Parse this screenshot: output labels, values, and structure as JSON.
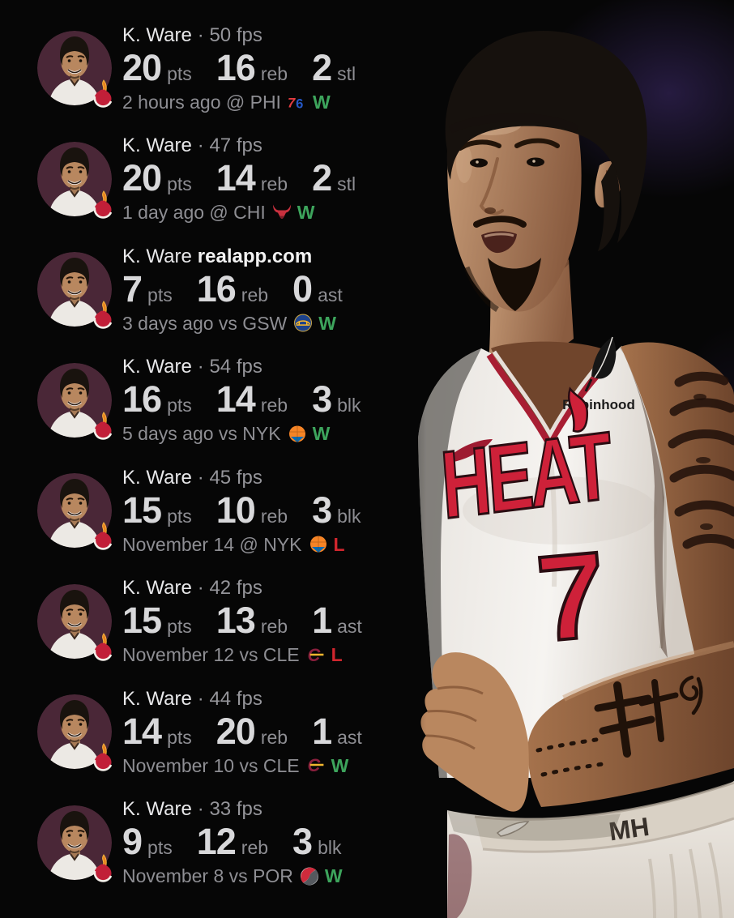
{
  "colors": {
    "background": "#060606",
    "heat_red": "#ce2139",
    "win_green": "#3da45c",
    "loss_red": "#d0262e",
    "avatar_maroon": "#4a2737",
    "text_primary": "#e8e8ea",
    "text_secondary": "#8e8e93"
  },
  "player_image": {
    "team_wordmark": "HEAT",
    "jersey_number": "7",
    "sponsor": "Robinhood",
    "waistband_mark": "MH"
  },
  "rows": [
    {
      "player": "K. Ware",
      "fps_text": "· 50 fps",
      "stats": [
        {
          "value": "20",
          "label": "pts"
        },
        {
          "value": "16",
          "label": "reb"
        },
        {
          "value": "2",
          "label": "stl"
        }
      ],
      "matchup": "2 hours ago @ PHI",
      "opponent_logo": "sixers-logo",
      "result": "W",
      "result_color": "#3da45c"
    },
    {
      "player": "K. Ware",
      "fps_text": "· 47 fps",
      "stats": [
        {
          "value": "20",
          "label": "pts"
        },
        {
          "value": "14",
          "label": "reb"
        },
        {
          "value": "2",
          "label": "stl"
        }
      ],
      "matchup": "1 day ago @ CHI",
      "opponent_logo": "bulls-logo",
      "result": "W",
      "result_color": "#3da45c"
    },
    {
      "player": "K. Ware",
      "watermark": "realapp.com",
      "stats": [
        {
          "value": "7",
          "label": "pts"
        },
        {
          "value": "16",
          "label": "reb"
        },
        {
          "value": "0",
          "label": "ast"
        }
      ],
      "matchup": "3 days ago vs GSW",
      "opponent_logo": "warriors-logo",
      "result": "W",
      "result_color": "#3da45c"
    },
    {
      "player": "K. Ware",
      "fps_text": "· 54 fps",
      "stats": [
        {
          "value": "16",
          "label": "pts"
        },
        {
          "value": "14",
          "label": "reb"
        },
        {
          "value": "3",
          "label": "blk"
        }
      ],
      "matchup": "5 days ago vs NYK",
      "opponent_logo": "knicks-logo",
      "result": "W",
      "result_color": "#3da45c"
    },
    {
      "player": "K. Ware",
      "fps_text": "· 45 fps",
      "stats": [
        {
          "value": "15",
          "label": "pts"
        },
        {
          "value": "10",
          "label": "reb"
        },
        {
          "value": "3",
          "label": "blk"
        }
      ],
      "matchup": "November 14 @ NYK",
      "opponent_logo": "knicks-logo",
      "result": "L",
      "result_color": "#d0262e"
    },
    {
      "player": "K. Ware",
      "fps_text": "· 42 fps",
      "stats": [
        {
          "value": "15",
          "label": "pts"
        },
        {
          "value": "13",
          "label": "reb"
        },
        {
          "value": "1",
          "label": "ast"
        }
      ],
      "matchup": "November 12 vs CLE",
      "opponent_logo": "cavaliers-logo",
      "result": "L",
      "result_color": "#d0262e"
    },
    {
      "player": "K. Ware",
      "fps_text": "· 44 fps",
      "stats": [
        {
          "value": "14",
          "label": "pts"
        },
        {
          "value": "20",
          "label": "reb"
        },
        {
          "value": "1",
          "label": "ast"
        }
      ],
      "matchup": "November 10 vs CLE",
      "opponent_logo": "cavaliers-logo",
      "result": "W",
      "result_color": "#3da45c"
    },
    {
      "player": "K. Ware",
      "fps_text": "· 33 fps",
      "stats": [
        {
          "value": "9",
          "label": "pts"
        },
        {
          "value": "12",
          "label": "reb"
        },
        {
          "value": "3",
          "label": "blk"
        }
      ],
      "matchup": "November 8 vs POR",
      "opponent_logo": "blazers-logo",
      "result": "W",
      "result_color": "#3da45c"
    }
  ]
}
